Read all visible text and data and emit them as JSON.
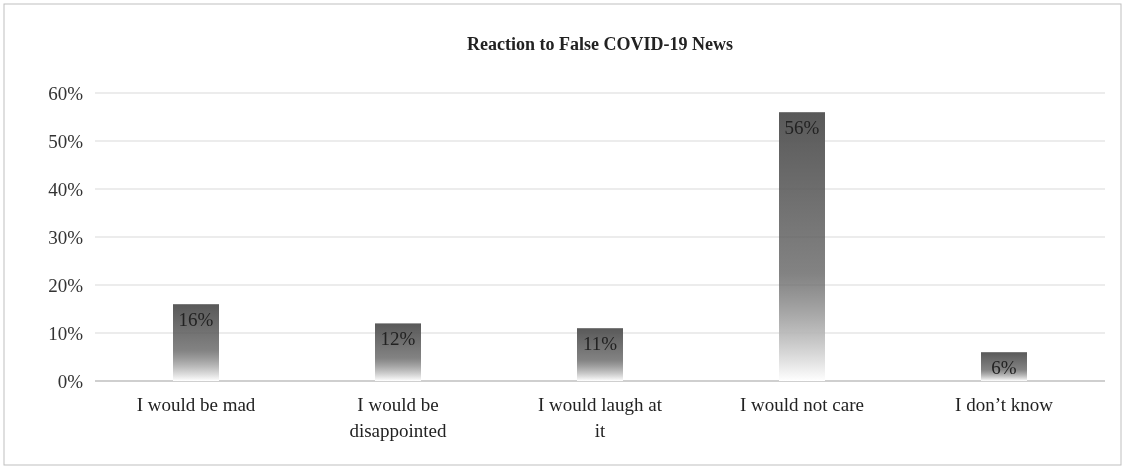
{
  "chart_data": {
    "type": "bar",
    "title": "Reaction to False COVID-19  News",
    "categories": [
      "I would be mad",
      "I would be disappointed",
      "I would laugh at it",
      "I would not care",
      "I don’t know"
    ],
    "values": [
      16,
      12,
      11,
      56,
      6
    ],
    "value_labels": [
      "16%",
      "12%",
      "11%",
      "56%",
      "6%"
    ],
    "color": "#595959",
    "ylim": [
      0,
      60
    ],
    "yticks": [
      {
        "value": 0,
        "label": "0%"
      },
      {
        "value": 10,
        "label": "10%"
      },
      {
        "value": 20,
        "label": "20%"
      },
      {
        "value": 30,
        "label": "30%"
      },
      {
        "value": 40,
        "label": "40%"
      },
      {
        "value": 50,
        "label": "50%"
      },
      {
        "value": 60,
        "label": "60%"
      }
    ],
    "grid": "y"
  }
}
